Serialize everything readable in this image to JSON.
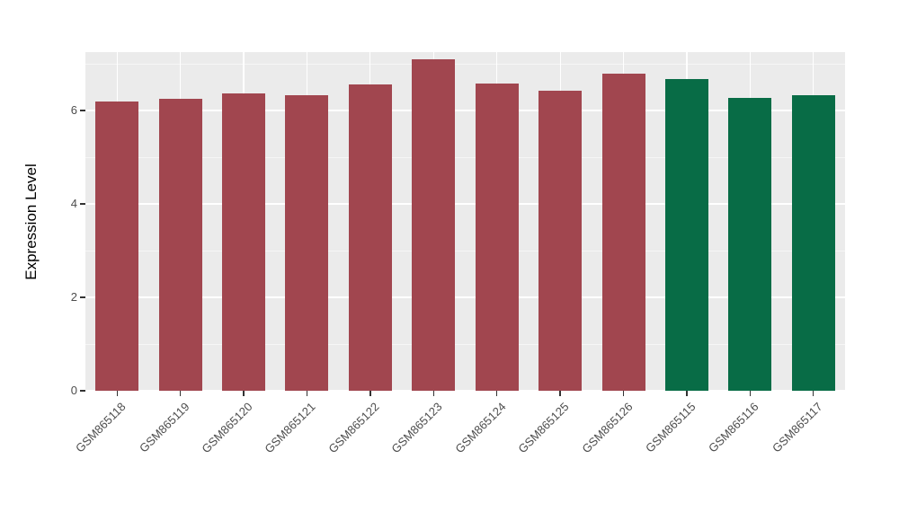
{
  "chart_data": {
    "type": "bar",
    "title": "",
    "xlabel": "",
    "ylabel": "Expression Level",
    "categories": [
      "GSM865118",
      "GSM865119",
      "GSM865120",
      "GSM865121",
      "GSM865122",
      "GSM865123",
      "GSM865124",
      "GSM865125",
      "GSM865126",
      "GSM865115",
      "GSM865116",
      "GSM865117"
    ],
    "values": [
      6.2,
      6.25,
      6.37,
      6.33,
      6.55,
      7.1,
      6.57,
      6.42,
      6.78,
      6.68,
      6.27,
      6.33
    ],
    "bar_colors": [
      "#A1464F",
      "#A1464F",
      "#A1464F",
      "#A1464F",
      "#A1464F",
      "#A1464F",
      "#A1464F",
      "#A1464F",
      "#A1464F",
      "#086C46",
      "#086C46",
      "#086C46"
    ],
    "group_colors": {
      "red_group": "#A1464F",
      "green_group": "#086C46"
    },
    "ylim": [
      0,
      7.25
    ],
    "yticks": [
      0,
      2,
      4,
      6
    ],
    "yticks_minor": [
      1,
      3,
      5,
      7
    ],
    "panel_background": "#EBEBEB",
    "grid_color": "#FFFFFF",
    "grid": "on",
    "legend": "none"
  }
}
